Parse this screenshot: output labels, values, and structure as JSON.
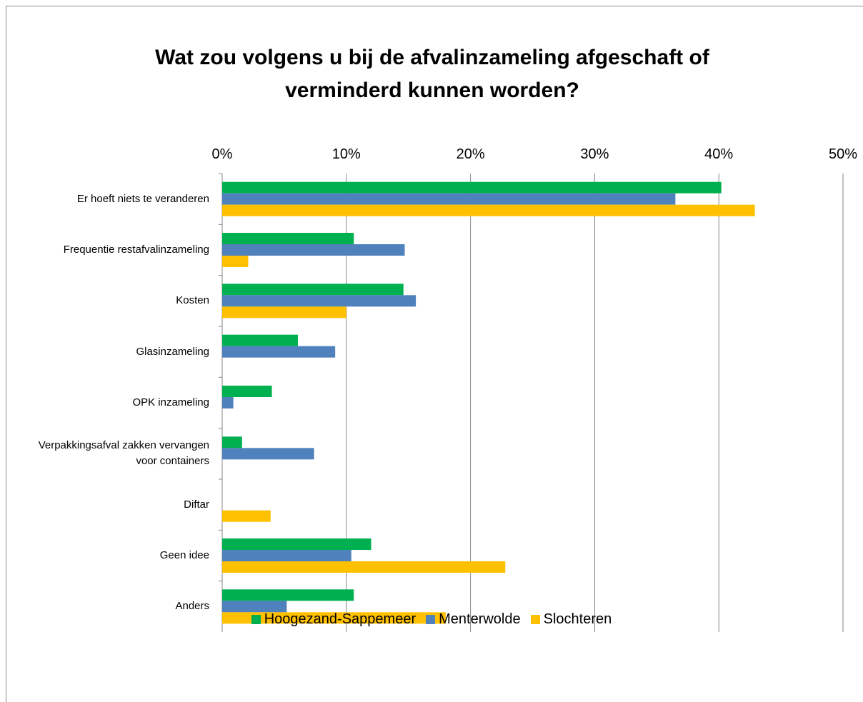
{
  "chart_data": {
    "type": "barh",
    "title": "Wat zou volgens u bij de afvalinzameling afgeschaft of verminderd kunnen worden?",
    "categories": [
      "Er hoeft niets te veranderen",
      "Frequentie restafvalinzameling",
      "Kosten",
      "Glasinzameling",
      "OPK inzameling",
      "Verpakkingsafval zakken vervangen voor containers",
      "Diftar",
      "Geen idee",
      "Anders"
    ],
    "series": [
      {
        "name": "Hoogezand-Sappemeer",
        "color": "#00b050",
        "values": [
          40.2,
          10.6,
          14.6,
          6.1,
          4.0,
          1.6,
          null,
          12.0,
          10.6
        ]
      },
      {
        "name": "Menterwolde",
        "color": "#4f81bd",
        "values": [
          36.5,
          14.7,
          15.6,
          9.1,
          0.9,
          7.4,
          null,
          10.4,
          5.2
        ]
      },
      {
        "name": "Slochteren",
        "color": "#ffc000",
        "values": [
          42.9,
          2.1,
          10.0,
          null,
          null,
          null,
          3.9,
          22.8,
          18.0
        ]
      }
    ],
    "xlim": [
      0,
      50
    ],
    "xticks": [
      {
        "value": 0,
        "label": "0%"
      },
      {
        "value": 10,
        "label": "10%"
      },
      {
        "value": 20,
        "label": "20%"
      },
      {
        "value": 30,
        "label": "30%"
      },
      {
        "value": 40,
        "label": "40%"
      },
      {
        "value": 50,
        "label": "50%"
      }
    ],
    "grid": true,
    "legend": "bottom"
  }
}
